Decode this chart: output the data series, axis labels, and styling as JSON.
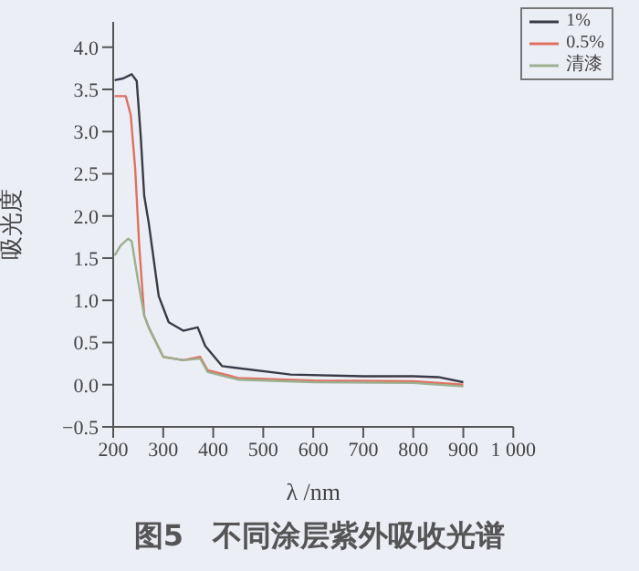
{
  "chart_data": {
    "type": "line",
    "xlabel": "λ /nm",
    "ylabel": "吸光度",
    "annotations": [
      "图5　不同涂层紫外吸收光谱"
    ],
    "xlim": [
      200,
      1000
    ],
    "xticks": [
      200,
      300,
      400,
      500,
      600,
      700,
      800,
      900,
      {
        "value": 1000,
        "label": "1 000"
      }
    ],
    "ylim": [
      -0.5,
      4.3
    ],
    "yticks": [
      {
        "value": -0.5,
        "label": "−0.5"
      },
      {
        "value": 0,
        "label": "0.0"
      },
      {
        "value": 0.5,
        "label": "0.5"
      },
      {
        "value": 1,
        "label": "1.0"
      },
      {
        "value": 1.5,
        "label": "1.5"
      },
      {
        "value": 2,
        "label": "2.0"
      },
      {
        "value": 2.5,
        "label": "2.5"
      },
      {
        "value": 3,
        "label": "3.0"
      },
      {
        "value": 3.5,
        "label": "3.5"
      },
      {
        "value": 4,
        "label": "4.0"
      }
    ],
    "grid": false,
    "legend": "top right",
    "marker": "none",
    "line_style": "solid",
    "series": [
      {
        "name": "1%",
        "color": "#3a3a48",
        "x": [
          203,
          220,
          237,
          247,
          255,
          262,
          271,
          291,
          311,
          340,
          369,
          384,
          418,
          555,
          700,
          800,
          850,
          900
        ],
        "values": [
          3.61,
          3.63,
          3.68,
          3.6,
          2.95,
          2.24,
          1.92,
          1.05,
          0.74,
          0.64,
          0.68,
          0.46,
          0.22,
          0.12,
          0.1,
          0.1,
          0.09,
          0.03
        ]
      },
      {
        "name": "0.5%",
        "color": "#e07060",
        "x": [
          203,
          225,
          235,
          244,
          252,
          262,
          271,
          300,
          340,
          374,
          389,
          450,
          600,
          800,
          900
        ],
        "values": [
          3.42,
          3.42,
          3.2,
          2.56,
          1.65,
          0.82,
          0.68,
          0.33,
          0.29,
          0.33,
          0.17,
          0.08,
          0.05,
          0.04,
          0.0
        ]
      },
      {
        "name": "清漆",
        "color": "#9ab090",
        "x": [
          203,
          215,
          230,
          237,
          250,
          262,
          271,
          300,
          340,
          374,
          389,
          450,
          600,
          800,
          900
        ],
        "values": [
          1.53,
          1.65,
          1.73,
          1.7,
          1.22,
          0.82,
          0.68,
          0.33,
          0.29,
          0.31,
          0.15,
          0.06,
          0.03,
          0.02,
          -0.02
        ]
      }
    ]
  }
}
